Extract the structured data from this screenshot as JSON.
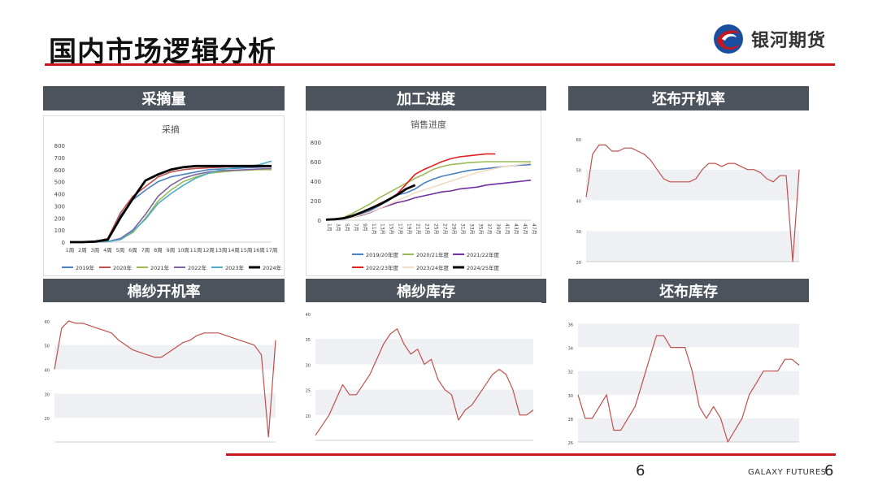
{
  "page": {
    "title": "国内市场逻辑分析",
    "brand_name": "银河期货",
    "page_number_center": "6",
    "footer_brand": "GALAXY FUTURES",
    "page_number_right": "6",
    "colors": {
      "accent": "#c8161d",
      "header_bg": "#4d535c"
    }
  },
  "panels": [
    {
      "header": "采摘量"
    },
    {
      "header": "加工进度"
    },
    {
      "header": "坯布开机率"
    },
    {
      "header": "棉纱开机率"
    },
    {
      "header": "棉纱库存"
    },
    {
      "header": "坯布库存"
    }
  ],
  "chart_data": [
    {
      "type": "line",
      "title": "采摘",
      "categories": [
        "1周",
        "2周",
        "3周",
        "4周",
        "5周",
        "6周",
        "7周",
        "8周",
        "9周",
        "10周",
        "11周",
        "12周",
        "13周",
        "14周",
        "15周",
        "16周",
        "17周"
      ],
      "ylim": [
        0,
        800
      ],
      "yticks": [
        0,
        100,
        200,
        300,
        400,
        500,
        600,
        700,
        800
      ],
      "legend_position": "bottom",
      "series": [
        {
          "name": "2019年",
          "color": "#4a7fc1",
          "values": [
            0,
            0,
            5,
            20,
            220,
            350,
            430,
            500,
            540,
            560,
            580,
            600,
            605,
            610,
            615,
            620,
            625
          ]
        },
        {
          "name": "2020年",
          "color": "#c0504d",
          "values": [
            0,
            0,
            5,
            30,
            240,
            380,
            460,
            540,
            580,
            600,
            610,
            615,
            620,
            625,
            625,
            625,
            625
          ]
        },
        {
          "name": "2021年",
          "color": "#9bbb59",
          "values": [
            0,
            0,
            0,
            5,
            20,
            80,
            200,
            340,
            430,
            500,
            540,
            570,
            580,
            590,
            595,
            600,
            600
          ]
        },
        {
          "name": "2022年",
          "color": "#8064a2",
          "values": [
            0,
            0,
            0,
            5,
            30,
            100,
            230,
            380,
            470,
            530,
            560,
            580,
            590,
            595,
            600,
            605,
            610
          ]
        },
        {
          "name": "2023年",
          "color": "#4bacc6",
          "values": [
            0,
            0,
            0,
            5,
            20,
            90,
            190,
            320,
            400,
            470,
            530,
            570,
            600,
            615,
            625,
            640,
            670
          ]
        },
        {
          "name": "2024年",
          "color": "#000000",
          "values": [
            0,
            0,
            5,
            20,
            200,
            360,
            510,
            560,
            600,
            620,
            630,
            630,
            630,
            630,
            630,
            630,
            630
          ]
        }
      ]
    },
    {
      "type": "line",
      "title": "销售进度",
      "categories": [
        "1月",
        "3月",
        "5月",
        "7月",
        "9月",
        "11月",
        "13月",
        "15月",
        "17月",
        "19月",
        "21月",
        "23月",
        "25月",
        "27月",
        "29月",
        "31月",
        "33月",
        "35月",
        "37月",
        "39月",
        "41月",
        "43月",
        "45月",
        "47月"
      ],
      "ylim": [
        0,
        800
      ],
      "yticks": [
        0,
        200,
        400,
        600,
        800
      ],
      "legend_position": "bottom",
      "series": [
        {
          "name": "2019/20年度",
          "color": "#4a7fc1",
          "values": [
            5,
            8,
            15,
            35,
            60,
            100,
            150,
            200,
            260,
            280,
            320,
            380,
            420,
            450,
            470,
            490,
            510,
            520,
            530,
            540,
            550,
            560,
            565,
            570
          ]
        },
        {
          "name": "2020/21年度",
          "color": "#9bbb59",
          "values": [
            5,
            10,
            30,
            70,
            120,
            170,
            230,
            280,
            330,
            380,
            430,
            470,
            520,
            550,
            570,
            580,
            590,
            595,
            600,
            600,
            600,
            600,
            600,
            600
          ]
        },
        {
          "name": "2021/22年度",
          "color": "#7030a0",
          "values": [
            5,
            8,
            15,
            30,
            50,
            80,
            120,
            150,
            180,
            200,
            230,
            250,
            270,
            290,
            300,
            320,
            330,
            340,
            360,
            370,
            380,
            390,
            400,
            410
          ]
        },
        {
          "name": "2022/23年度",
          "color": "#e02020",
          "values": [
            5,
            8,
            20,
            45,
            80,
            120,
            170,
            210,
            270,
            370,
            470,
            520,
            560,
            600,
            630,
            650,
            660,
            670,
            680,
            680,
            null,
            null,
            null,
            null
          ]
        },
        {
          "name": "2023/24年度",
          "color": "#f0dcc0",
          "values": [
            5,
            8,
            15,
            30,
            55,
            85,
            120,
            160,
            200,
            240,
            280,
            310,
            340,
            370,
            400,
            430,
            460,
            490,
            510,
            530,
            550,
            560,
            575,
            585
          ]
        },
        {
          "name": "2024/25年度",
          "color": "#000000",
          "values": [
            5,
            10,
            20,
            45,
            80,
            120,
            160,
            210,
            260,
            320,
            360,
            null,
            null,
            null,
            null,
            null,
            null,
            null,
            null,
            null,
            null,
            null,
            null,
            null
          ]
        }
      ]
    },
    {
      "type": "line",
      "ylim": [
        20,
        65
      ],
      "yticks": [
        20,
        30,
        40,
        50,
        60
      ],
      "series": [
        {
          "color": "#c0504d",
          "values": [
            41,
            55,
            58,
            58,
            56,
            56,
            57,
            57,
            56,
            55,
            53,
            50,
            47,
            46,
            46,
            46,
            46,
            47,
            50,
            52,
            52,
            51,
            52,
            52,
            51,
            50,
            50,
            49,
            47,
            46,
            48,
            48,
            20,
            50
          ]
        }
      ]
    },
    {
      "type": "line",
      "ylim": [
        10,
        65
      ],
      "yticks": [
        20,
        30,
        40,
        50,
        60
      ],
      "series": [
        {
          "color": "#c0504d",
          "values": [
            40,
            57,
            60,
            59,
            59,
            58,
            57,
            56,
            55,
            52,
            50,
            48,
            47,
            46,
            45,
            45,
            47,
            49,
            51,
            52,
            54,
            55,
            55,
            55,
            54,
            53,
            52,
            51,
            50,
            46,
            12,
            52
          ]
        }
      ]
    },
    {
      "type": "line",
      "ylim": [
        15,
        40
      ],
      "yticks": [
        20,
        25,
        30,
        35,
        40
      ],
      "series": [
        {
          "color": "#c0504d",
          "values": [
            16,
            18,
            20,
            23,
            26,
            24,
            24,
            26,
            28,
            31,
            34,
            36,
            37,
            34,
            32,
            33,
            30,
            31,
            27,
            25,
            24,
            19,
            21,
            22,
            24,
            26,
            28,
            29,
            28,
            25,
            20,
            20,
            21
          ]
        }
      ]
    },
    {
      "type": "line",
      "ylim": [
        26,
        37
      ],
      "yticks": [
        26,
        28,
        30,
        32,
        34,
        36
      ],
      "series": [
        {
          "color": "#c0504d",
          "values": [
            30,
            28,
            28,
            29,
            30,
            27,
            27,
            28,
            29,
            31,
            33,
            35,
            35,
            34,
            34,
            34,
            32,
            29,
            28,
            29,
            28,
            26,
            27,
            28,
            30,
            31,
            32,
            32,
            32,
            33,
            33,
            32.5
          ]
        }
      ]
    }
  ]
}
